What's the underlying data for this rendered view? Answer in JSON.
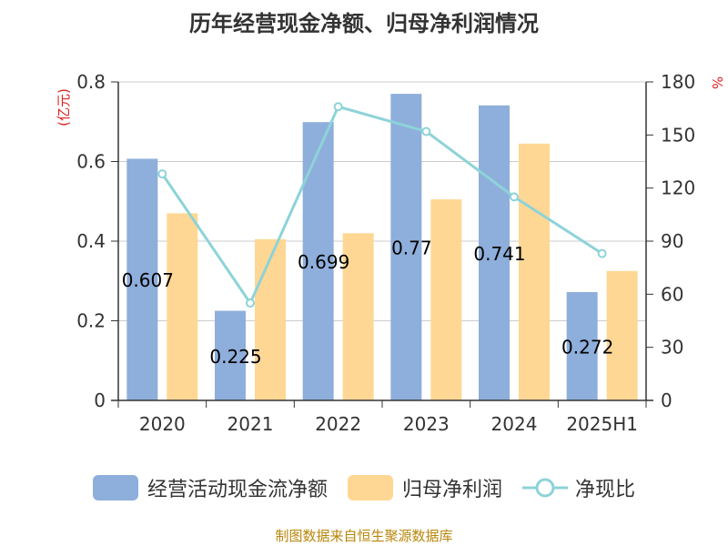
{
  "chart_data": {
    "type": "bar",
    "title": "历年经营现金净额、归母净利润情况",
    "categories": [
      "2020",
      "2021",
      "2022",
      "2023",
      "2024",
      "2025H1"
    ],
    "series": [
      {
        "name": "经营活动现金流净额",
        "type": "bar",
        "axis": "left",
        "values": [
          0.607,
          0.225,
          0.699,
          0.77,
          0.741,
          0.272
        ],
        "color": "#8eaedb"
      },
      {
        "name": "归母净利润",
        "type": "bar",
        "axis": "left",
        "values": [
          0.47,
          0.405,
          0.42,
          0.505,
          0.645,
          0.325
        ],
        "color": "#ffd794"
      },
      {
        "name": "净现比",
        "type": "line",
        "axis": "right",
        "values": [
          128,
          55,
          166,
          152,
          115,
          83
        ],
        "color": "#8dd3d8"
      }
    ],
    "data_labels": [
      "0.607",
      "0.225",
      "0.699",
      "0.77",
      "0.741",
      "0.272"
    ],
    "y_left": {
      "unit": "(亿元)",
      "ylim": [
        0,
        0.8
      ],
      "ticks": [
        "0",
        "0.2",
        "0.4",
        "0.6",
        "0.8"
      ]
    },
    "y_right": {
      "unit": "%",
      "ylim": [
        0,
        180
      ],
      "ticks": [
        "0",
        "30",
        "60",
        "90",
        "120",
        "150",
        "180"
      ]
    },
    "grid": true,
    "legend_position": "bottom"
  },
  "source_text": "制图数据来自恒生聚源数据库"
}
